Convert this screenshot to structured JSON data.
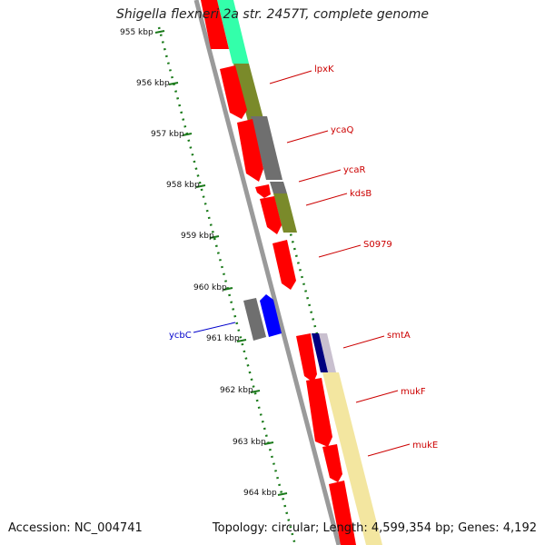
{
  "header": {
    "title": "Shigella flexneri 2a str. 2457T, complete genome"
  },
  "footer": {
    "accession": "Accession: NC_004741",
    "topology": "Topology: circular; Length: 4,599,354 bp; Genes: 4,192"
  },
  "colors": {
    "forward_label": "#cc0000",
    "reverse_label": "#0000cc",
    "ruler": "#1a7a1a",
    "backbone": "#888888",
    "cds": "#ff0000",
    "reverse_cds": "#0000ff",
    "cog_cyan": "#33ffaa",
    "cog_olive": "#7a8a2a",
    "cog_gray": "#6f6f6f",
    "cog_navy": "#000080",
    "cog_pale": "#f3e6a0"
  },
  "ruler_ticks": [
    "955 kbp",
    "956 kbp",
    "957 kbp",
    "958 kbp",
    "959 kbp",
    "960 kbp",
    "961 kbp",
    "962 kbp",
    "963 kbp",
    "964 kbp"
  ],
  "gene_labels": [
    {
      "text": "lpxK",
      "strand": "forward"
    },
    {
      "text": "ycaQ",
      "strand": "forward"
    },
    {
      "text": "ycaR",
      "strand": "forward"
    },
    {
      "text": "kdsB",
      "strand": "forward"
    },
    {
      "text": "S0979",
      "strand": "forward"
    },
    {
      "text": "smtA",
      "strand": "forward"
    },
    {
      "text": "mukF",
      "strand": "forward"
    },
    {
      "text": "mukE",
      "strand": "forward"
    },
    {
      "text": "ycbC",
      "strand": "reverse"
    }
  ]
}
